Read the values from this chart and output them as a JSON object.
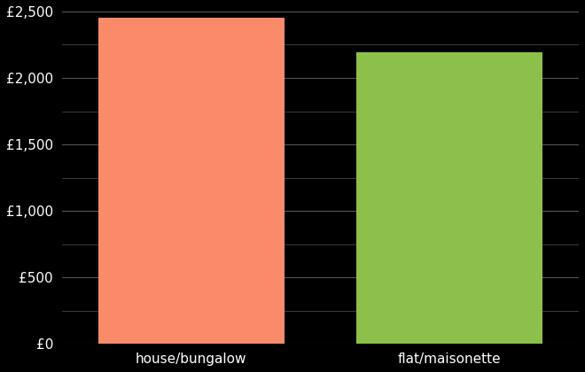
{
  "categories": [
    "house/bungalow",
    "flat/maisonette"
  ],
  "values": [
    2450,
    2190
  ],
  "bar_colors": [
    "#F98B6A",
    "#8DC04A"
  ],
  "background_color": "#000000",
  "text_color": "#ffffff",
  "grid_color": "#555555",
  "ylim": [
    0,
    2500
  ],
  "yticks": [
    0,
    500,
    1000,
    1500,
    2000,
    2500
  ],
  "ytick_labels": [
    "£0",
    "£500",
    "£1,000",
    "£1,500",
    "£2,000",
    "£2,500"
  ],
  "minor_ytick_interval": 250,
  "bar_width": 0.72,
  "xlabel_fontsize": 11,
  "tick_fontsize": 11
}
